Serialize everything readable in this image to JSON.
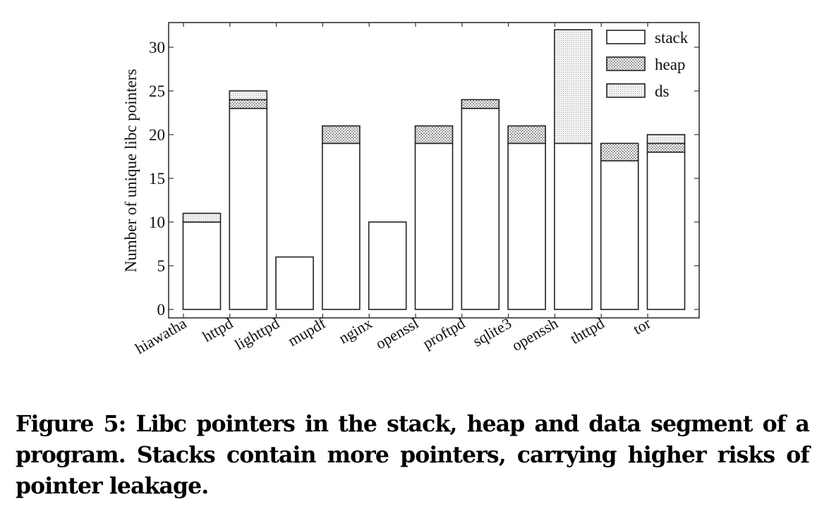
{
  "chart_data": {
    "type": "bar",
    "stacked": true,
    "title": "",
    "xlabel": "",
    "ylabel": "Number of unique libc pointers",
    "ylim": [
      0,
      32.5
    ],
    "yticks": [
      0,
      5,
      10,
      15,
      20,
      25,
      30
    ],
    "grid": false,
    "legend_position": "upper right",
    "categories": [
      "hiawatha",
      "httpd",
      "lighttpd",
      "mupdf",
      "nginx",
      "openssl",
      "proftpd",
      "sqlite3",
      "openssh",
      "thttpd",
      "tor"
    ],
    "series": [
      {
        "name": "stack",
        "pattern": "none",
        "values": [
          10,
          23,
          6,
          19,
          10,
          19,
          23,
          19,
          19,
          17,
          18
        ]
      },
      {
        "name": "heap",
        "pattern": "crosshatch",
        "values": [
          0,
          1,
          0,
          2,
          0,
          2,
          1,
          2,
          0,
          2,
          1
        ]
      },
      {
        "name": "ds",
        "pattern": "dots",
        "values": [
          1,
          1,
          0,
          0,
          0,
          0,
          0,
          0,
          13,
          0,
          1
        ]
      }
    ],
    "totals": [
      11,
      25,
      6,
      21,
      10,
      21,
      24,
      21,
      32,
      19,
      20
    ]
  },
  "legend": {
    "items": [
      {
        "label": "stack"
      },
      {
        "label": "heap"
      },
      {
        "label": "ds"
      }
    ]
  },
  "caption": {
    "text": "Figure 5: Libc pointers in the stack, heap and data segment of a program. Stacks contain more pointers, carrying higher risks of pointer leakage."
  },
  "colors": {
    "bar_stroke": "#222222",
    "axis": "#333333",
    "fill": "#ffffff",
    "pattern": "#9a9a9a"
  }
}
